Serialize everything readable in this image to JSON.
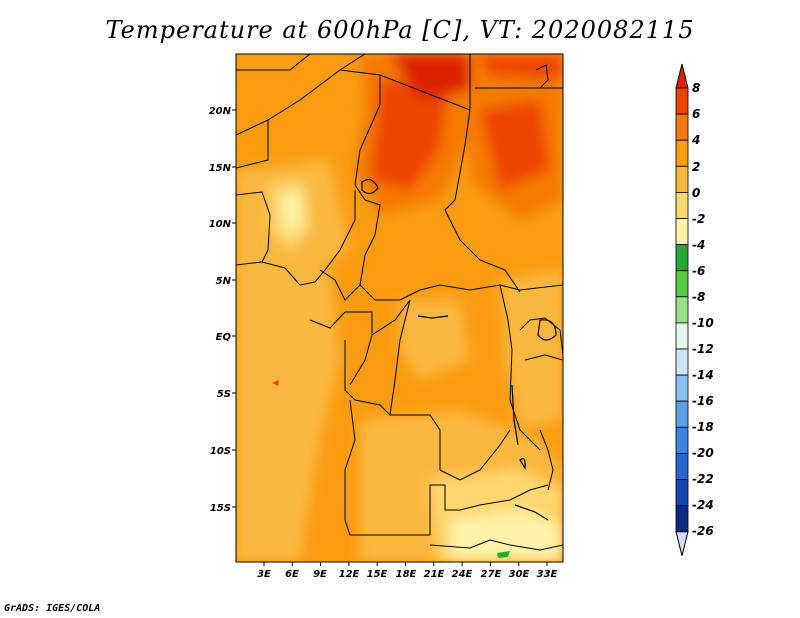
{
  "title": "Temperature at 600hPa [C], VT: 2020082115",
  "footer": "GrADS: IGES/COLA",
  "map": {
    "lat_labels": [
      "20N",
      "15N",
      "10N",
      "5N",
      "EQ",
      "5S",
      "10S",
      "15S"
    ],
    "lon_labels": [
      "3E",
      "6E",
      "9E",
      "12E",
      "15E",
      "18E",
      "21E",
      "24E",
      "27E",
      "30E",
      "33E"
    ]
  },
  "colorbar": {
    "labels": [
      "8",
      "6",
      "4",
      "2",
      "0",
      "-2",
      "-4",
      "-6",
      "-8",
      "-10",
      "-12",
      "-14",
      "-16",
      "-18",
      "-20",
      "-22",
      "-24",
      "-26"
    ],
    "colors": [
      "#dd2200",
      "#ee4400",
      "#f57a00",
      "#fa9c10",
      "#fbb840",
      "#fdd870",
      "#fef2a8",
      "#22aa33",
      "#55cc44",
      "#99e088",
      "#e0f8e8",
      "#cfe6fa",
      "#88c0f2",
      "#5ca0ea",
      "#3c84e0",
      "#2566d0",
      "#1448b0",
      "#0a2a80",
      "#000c4a"
    ],
    "top_color": "#dd2200",
    "bottom_color": "#d8d8f8"
  }
}
